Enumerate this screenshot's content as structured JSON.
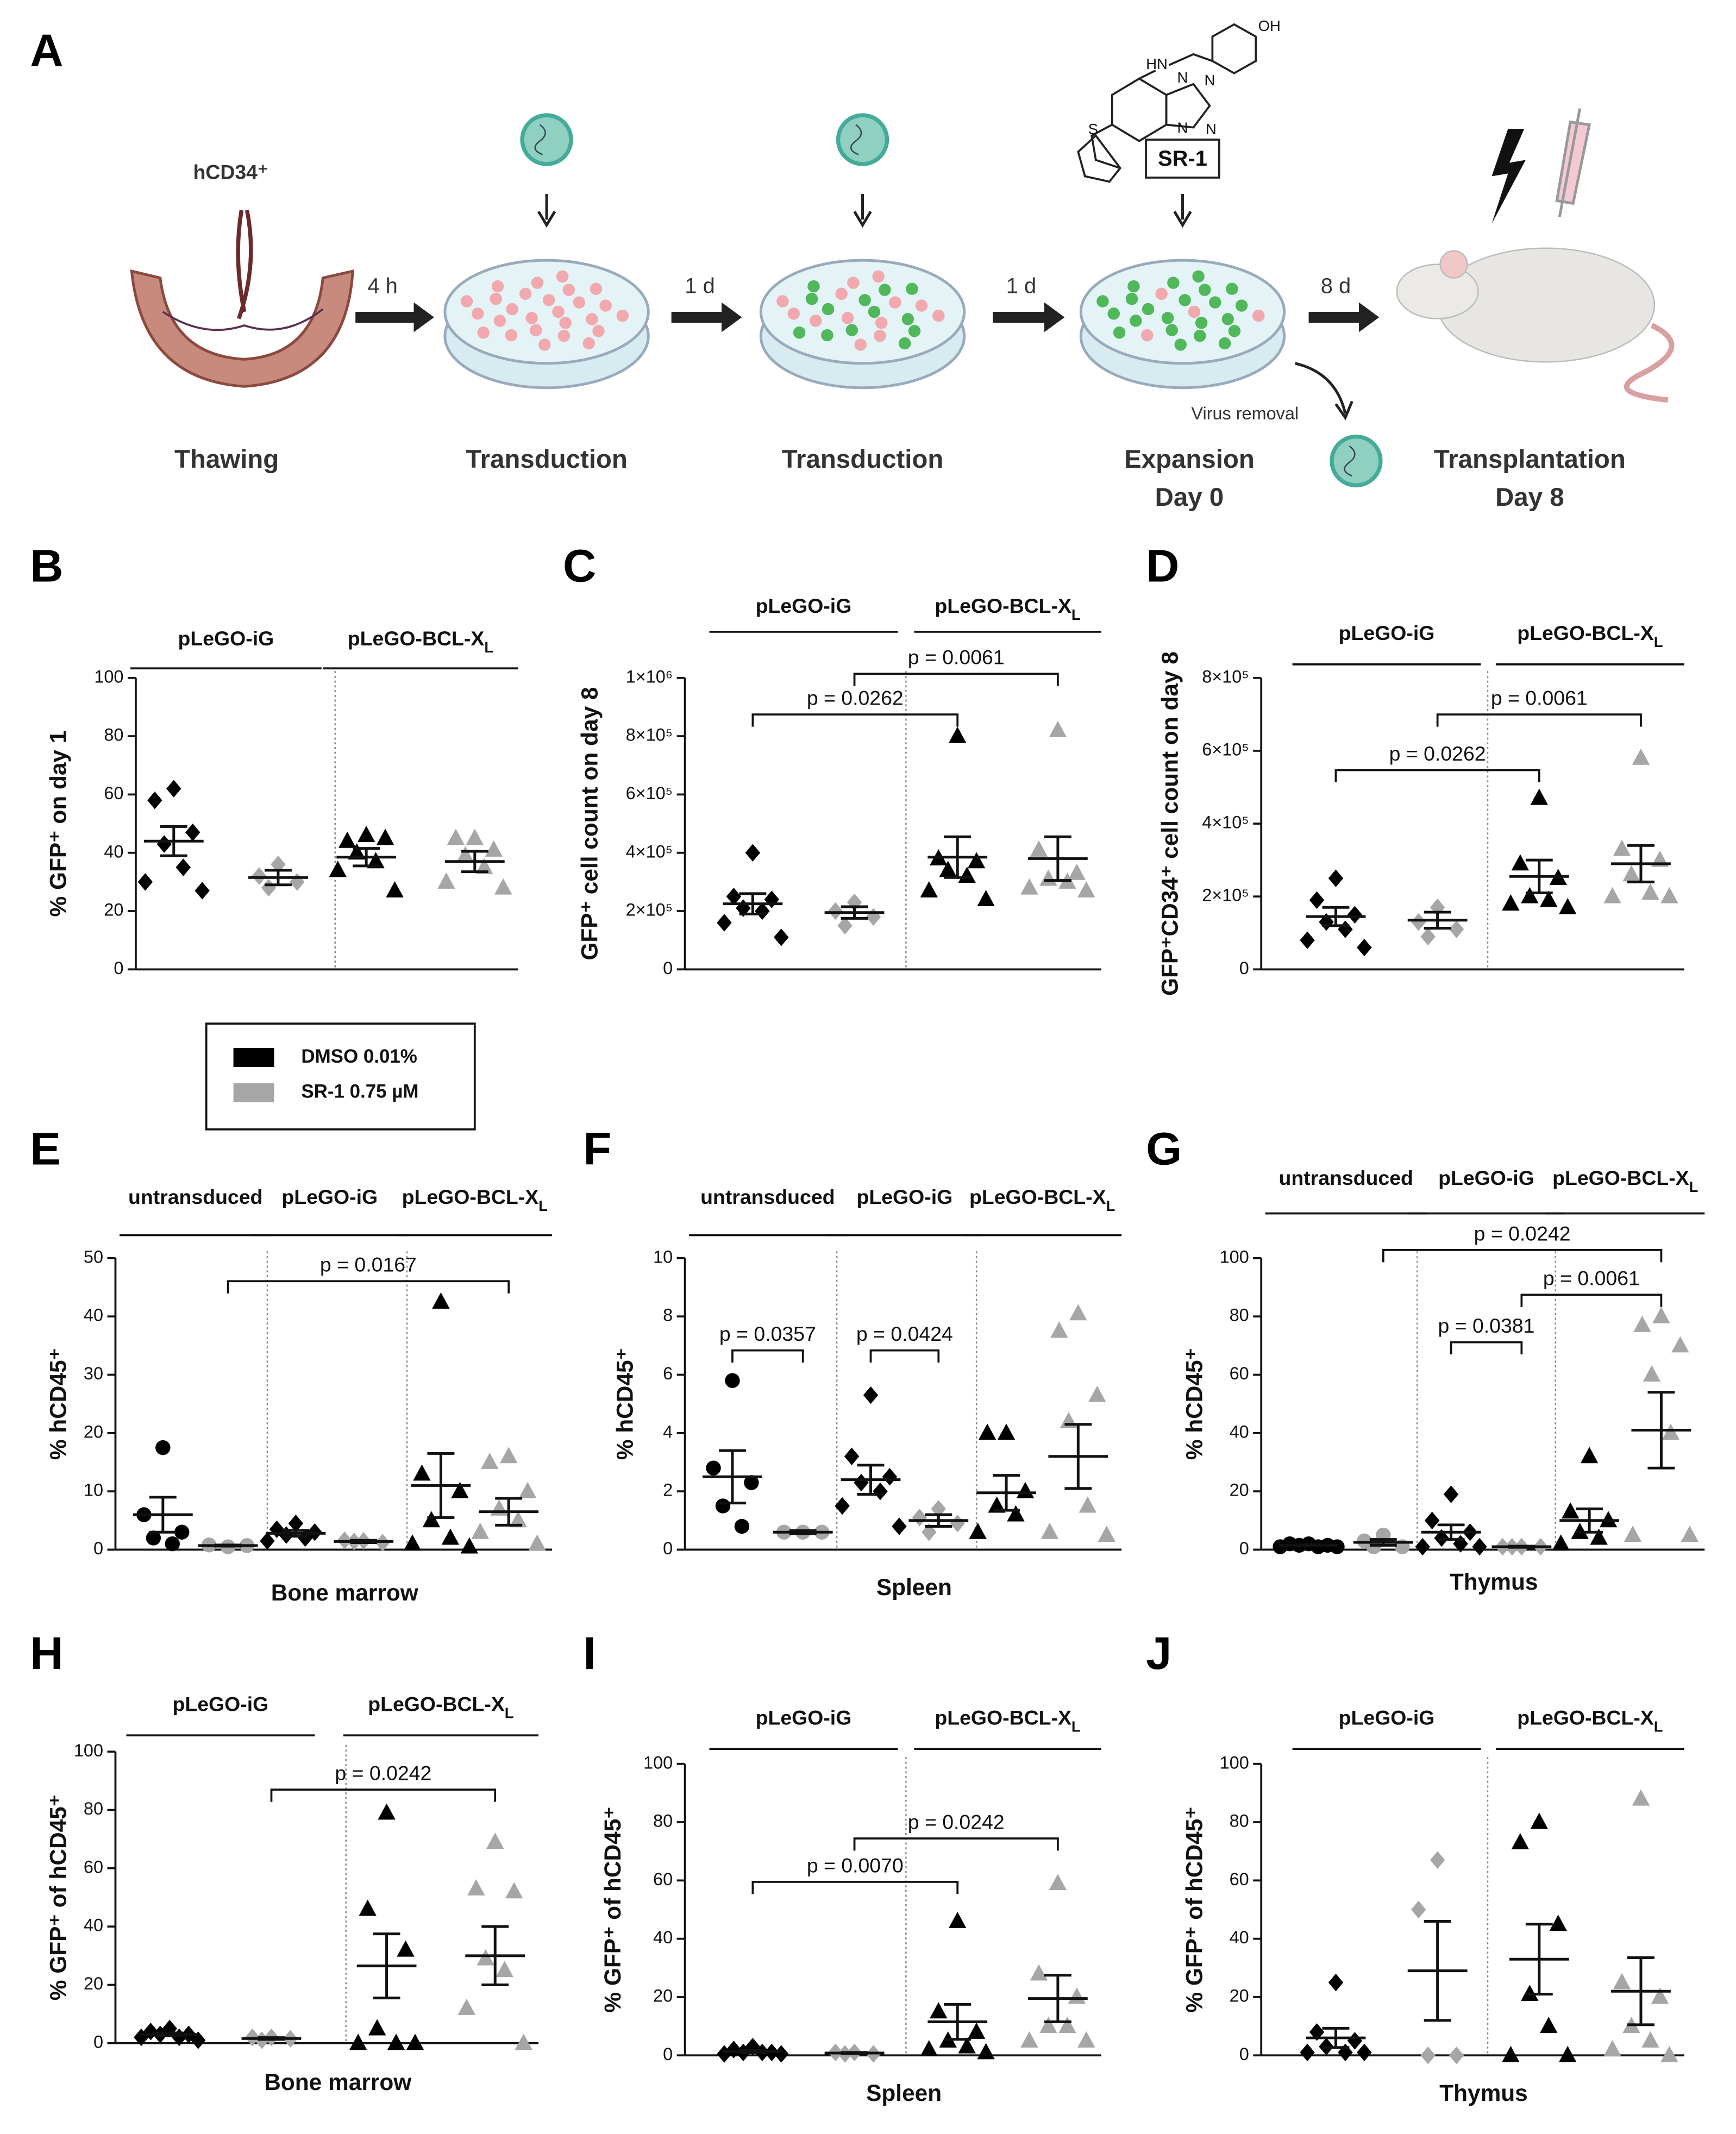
{
  "schematic": {
    "panel": "A",
    "source": "hCD34⁺",
    "intervals": [
      "4 h",
      "1 d",
      "1 d",
      "8 d"
    ],
    "stages": [
      [
        "Thawing"
      ],
      [
        "Transduction"
      ],
      [
        "Transduction"
      ],
      [
        "Expansion",
        "Day 0"
      ],
      [
        "Transplantation",
        "Day 8"
      ]
    ],
    "compound": "SR-1",
    "compound_atoms": [
      "OH",
      "HN",
      "N",
      "N",
      "N",
      "N",
      "S"
    ],
    "side_step": "Virus removal"
  },
  "legend": {
    "series": [
      {
        "name": "DMSO 0.01%",
        "color": "#000000"
      },
      {
        "name": "SR-1 0.75 µM",
        "color": "#a6a6a6"
      }
    ]
  },
  "chart_data": [
    {
      "type": "dotplot",
      "panel": "B",
      "ylabel": "% GFP⁺ on day 1",
      "ylim": [
        0,
        100
      ],
      "yticks": [
        0,
        20,
        40,
        60,
        80,
        100
      ],
      "headers": [
        "pLeGO-iG",
        {
          "text": "pLeGO-BCL-X",
          "sub": "L"
        }
      ],
      "groups": [
        {
          "series": 0,
          "marker": "diamond",
          "values": [
            62,
            58,
            47,
            43,
            35,
            30,
            27
          ],
          "mean": 44,
          "sem": 5
        },
        {
          "series": 1,
          "marker": "diamond",
          "values": [
            36,
            32,
            30,
            28
          ],
          "mean": 31.5,
          "sem": 2.5
        },
        {
          "series": 0,
          "marker": "triangle",
          "values": [
            46,
            44,
            45,
            40,
            37,
            34,
            27
          ],
          "mean": 38.5,
          "sem": 3
        },
        {
          "series": 1,
          "marker": "triangle",
          "values": [
            45,
            45,
            41,
            39,
            35,
            30,
            28
          ],
          "mean": 37,
          "sem": 3.5
        }
      ],
      "brackets": []
    },
    {
      "type": "dotplot",
      "panel": "C",
      "ylabel": "GFP⁺ cell count on day 8",
      "ylim": [
        0,
        1000000
      ],
      "yticks": [
        0,
        {
          "value": 200000,
          "label": "2×10⁵"
        },
        {
          "value": 400000,
          "label": "4×10⁵"
        },
        {
          "value": 600000,
          "label": "6×10⁵"
        },
        {
          "value": 800000,
          "label": "8×10⁵"
        },
        {
          "value": 1000000,
          "label": "1×10⁶"
        }
      ],
      "headers": [
        "pLeGO-iG",
        {
          "text": "pLeGO-BCL-X",
          "sub": "L"
        }
      ],
      "groups": [
        {
          "series": 0,
          "marker": "diamond",
          "values": [
            400000,
            250000,
            240000,
            210000,
            200000,
            160000,
            110000
          ],
          "mean": 225000,
          "sem": 35000
        },
        {
          "series": 1,
          "marker": "diamond",
          "values": [
            230000,
            200000,
            180000,
            150000
          ],
          "mean": 195000,
          "sem": 20000
        },
        {
          "series": 0,
          "marker": "triangle",
          "values": [
            800000,
            380000,
            370000,
            340000,
            320000,
            270000,
            240000
          ],
          "mean": 385000,
          "sem": 70000
        },
        {
          "series": 1,
          "marker": "triangle",
          "values": [
            820000,
            410000,
            330000,
            310000,
            300000,
            280000,
            270000
          ],
          "mean": 380000,
          "sem": 75000
        }
      ],
      "brackets": [
        "p = 0.0262",
        "p = 0.0061"
      ]
    },
    {
      "type": "dotplot",
      "panel": "D",
      "ylabel": "GFP⁺CD34⁺ cell count on day 8",
      "ylim": [
        0,
        800000
      ],
      "yticks": [
        0,
        {
          "value": 200000,
          "label": "2×10⁵"
        },
        {
          "value": 400000,
          "label": "4×10⁵"
        },
        {
          "value": 600000,
          "label": "6×10⁵"
        },
        {
          "value": 800000,
          "label": "8×10⁵"
        }
      ],
      "headers": [
        "pLeGO-iG",
        {
          "text": "pLeGO-BCL-X",
          "sub": "L"
        }
      ],
      "groups": [
        {
          "series": 0,
          "marker": "diamond",
          "values": [
            250000,
            190000,
            150000,
            130000,
            110000,
            80000,
            60000
          ],
          "mean": 145000,
          "sem": 25000
        },
        {
          "series": 1,
          "marker": "diamond",
          "values": [
            170000,
            130000,
            110000,
            90000
          ],
          "mean": 135000,
          "sem": 22000
        },
        {
          "series": 0,
          "marker": "triangle",
          "values": [
            470000,
            290000,
            250000,
            200000,
            190000,
            180000,
            170000
          ],
          "mean": 255000,
          "sem": 45000
        },
        {
          "series": 1,
          "marker": "triangle",
          "values": [
            580000,
            330000,
            300000,
            260000,
            210000,
            200000,
            200000
          ],
          "mean": 290000,
          "sem": 50000
        }
      ],
      "brackets": [
        "p = 0.0262",
        "p = 0.0061"
      ]
    },
    {
      "type": "dotplot",
      "panel": "E",
      "ylabel": "% hCD45⁺",
      "xlabel": "Bone marrow",
      "ylim": [
        0,
        50
      ],
      "yticks": [
        0,
        10,
        20,
        30,
        40,
        50
      ],
      "headers": [
        "untransduced",
        "pLeGO-iG",
        {
          "text": "pLeGO-BCL-X",
          "sub": "L"
        }
      ],
      "groups": [
        {
          "series": 0,
          "marker": "circle",
          "values": [
            17.5,
            6,
            3,
            2,
            1
          ],
          "mean": 6,
          "sem": 3
        },
        {
          "series": 1,
          "marker": "circle",
          "values": [
            0.5,
            0.8,
            0.7
          ],
          "mean": 0.7,
          "sem": 0.1
        },
        {
          "series": 0,
          "marker": "diamond",
          "values": [
            4.5,
            3.5,
            3,
            2.5,
            2,
            1.5
          ],
          "mean": 2.8,
          "sem": 0.5
        },
        {
          "series": 1,
          "marker": "diamond",
          "values": [
            1.5,
            1.6,
            1.2,
            1.4
          ],
          "mean": 1.4,
          "sem": 0.2
        },
        {
          "series": 0,
          "marker": "triangle",
          "values": [
            42.5,
            13,
            10,
            5,
            2,
            1,
            0.5
          ],
          "mean": 11,
          "sem": 5.5
        },
        {
          "series": 1,
          "marker": "triangle",
          "values": [
            16,
            15,
            10,
            7,
            5,
            3,
            1
          ],
          "mean": 6.5,
          "sem": 2.3
        }
      ],
      "brackets": [
        "p = 0.0167"
      ]
    },
    {
      "type": "dotplot",
      "panel": "F",
      "ylabel": "% hCD45⁺",
      "xlabel": "Spleen",
      "ylim": [
        0,
        10
      ],
      "yticks": [
        0,
        2,
        4,
        6,
        8,
        10
      ],
      "headers": [
        "untransduced",
        "pLeGO-iG",
        {
          "text": "pLeGO-BCL-X",
          "sub": "L"
        }
      ],
      "groups": [
        {
          "series": 0,
          "marker": "circle",
          "values": [
            5.8,
            2.8,
            2.3,
            1.5,
            0.8
          ],
          "mean": 2.5,
          "sem": 0.9
        },
        {
          "series": 1,
          "marker": "circle",
          "values": [
            0.6,
            0.6,
            0.6
          ],
          "mean": 0.6,
          "sem": 0.05
        },
        {
          "series": 0,
          "marker": "diamond",
          "values": [
            5.3,
            3.2,
            2.5,
            2.3,
            2,
            1.5,
            0.8
          ],
          "mean": 2.4,
          "sem": 0.5
        },
        {
          "series": 1,
          "marker": "diamond",
          "values": [
            1.4,
            1.1,
            0.9,
            0.6
          ],
          "mean": 1,
          "sem": 0.2
        },
        {
          "series": 0,
          "marker": "triangle",
          "values": [
            4,
            4,
            2,
            1.5,
            1.2,
            0.6
          ],
          "mean": 1.95,
          "sem": 0.6
        },
        {
          "series": 1,
          "marker": "triangle",
          "values": [
            8.1,
            7.5,
            5.3,
            4.4,
            1.5,
            0.6,
            0.5
          ],
          "mean": 3.2,
          "sem": 1.1
        }
      ],
      "brackets": [
        "p = 0.0357",
        "p = 0.0424"
      ]
    },
    {
      "type": "dotplot",
      "panel": "G",
      "ylabel": "% hCD45⁺",
      "xlabel": "Thymus",
      "ylim": [
        0,
        100
      ],
      "yticks": [
        0,
        20,
        40,
        60,
        80,
        100
      ],
      "headers": [
        "untransduced",
        "pLeGO-iG",
        {
          "text": "pLeGO-BCL-X",
          "sub": "L"
        }
      ],
      "groups": [
        {
          "series": 0,
          "marker": "circle",
          "values": [
            2,
            2,
            1.5,
            1.5,
            1,
            1,
            1
          ],
          "mean": 1.5,
          "sem": 0.2
        },
        {
          "series": 1,
          "marker": "circle",
          "values": [
            5,
            3,
            1,
            1
          ],
          "mean": 2.5,
          "sem": 1
        },
        {
          "series": 0,
          "marker": "diamond",
          "values": [
            19,
            10,
            6,
            4,
            2,
            1,
            1
          ],
          "mean": 6,
          "sem": 2.5
        },
        {
          "series": 1,
          "marker": "diamond",
          "values": [
            1,
            1,
            1,
            1
          ],
          "mean": 1,
          "sem": 0.2
        },
        {
          "series": 0,
          "marker": "triangle",
          "values": [
            32,
            13,
            10,
            6,
            4,
            2
          ],
          "mean": 10,
          "sem": 4
        },
        {
          "series": 1,
          "marker": "triangle",
          "values": [
            80,
            77,
            70,
            60,
            40,
            5,
            5
          ],
          "mean": 41,
          "sem": 13
        }
      ],
      "brackets": [
        "p = 0.0242",
        "p = 0.0061",
        "p = 0.0381"
      ]
    },
    {
      "type": "dotplot",
      "panel": "H",
      "ylabel": "% GFP⁺ of hCD45⁺",
      "xlabel": "Bone marrow",
      "ylim": [
        0,
        100
      ],
      "yticks": [
        0,
        20,
        40,
        60,
        80,
        100
      ],
      "headers": [
        "pLeGO-iG",
        {
          "text": "pLeGO-BCL-X",
          "sub": "L"
        }
      ],
      "groups": [
        {
          "series": 0,
          "marker": "diamond",
          "values": [
            5,
            4,
            3,
            3,
            2,
            2,
            1
          ],
          "mean": 3,
          "sem": 0.5
        },
        {
          "series": 1,
          "marker": "diamond",
          "values": [
            2,
            2,
            1.5,
            1
          ],
          "mean": 1.6,
          "sem": 0.3
        },
        {
          "series": 0,
          "marker": "triangle",
          "values": [
            79,
            46,
            32,
            5,
            0,
            0,
            0
          ],
          "mean": 26.5,
          "sem": 11
        },
        {
          "series": 1,
          "marker": "triangle",
          "values": [
            69,
            53,
            52,
            29,
            25,
            12,
            0
          ],
          "mean": 30,
          "sem": 10
        }
      ],
      "brackets": [
        "p = 0.0242"
      ]
    },
    {
      "type": "dotplot",
      "panel": "I",
      "ylabel": "% GFP⁺ of hCD45⁺",
      "xlabel": "Spleen",
      "ylim": [
        0,
        100
      ],
      "yticks": [
        0,
        20,
        40,
        60,
        80,
        100
      ],
      "headers": [
        "pLeGO-iG",
        {
          "text": "pLeGO-BCL-X",
          "sub": "L"
        }
      ],
      "groups": [
        {
          "series": 0,
          "marker": "diamond",
          "values": [
            3,
            2,
            1,
            1,
            1,
            0.5,
            0.5
          ],
          "mean": 1.3,
          "sem": 0.4
        },
        {
          "series": 1,
          "marker": "diamond",
          "values": [
            1,
            1,
            0.5,
            0.5
          ],
          "mean": 0.8,
          "sem": 0.2
        },
        {
          "series": 0,
          "marker": "triangle",
          "values": [
            46,
            15,
            8,
            5,
            3,
            2,
            1
          ],
          "mean": 11.5,
          "sem": 6
        },
        {
          "series": 1,
          "marker": "triangle",
          "values": [
            59,
            28,
            20,
            10,
            10,
            5,
            5
          ],
          "mean": 19.5,
          "sem": 8
        }
      ],
      "brackets": [
        "p = 0.0070",
        "p = 0.0242"
      ]
    },
    {
      "type": "dotplot",
      "panel": "J",
      "ylabel": "% GFP⁺ of hCD45⁺",
      "xlabel": "Thymus",
      "ylim": [
        0,
        100
      ],
      "yticks": [
        0,
        20,
        40,
        60,
        80,
        100
      ],
      "headers": [
        "pLeGO-iG",
        {
          "text": "pLeGO-BCL-X",
          "sub": "L"
        }
      ],
      "groups": [
        {
          "series": 0,
          "marker": "diamond",
          "values": [
            25,
            8,
            5,
            3,
            1,
            1,
            1
          ],
          "mean": 6,
          "sem": 3.3
        },
        {
          "series": 1,
          "marker": "diamond",
          "values": [
            67,
            50,
            0,
            0
          ],
          "mean": 29,
          "sem": 17
        },
        {
          "series": 0,
          "marker": "triangle",
          "values": [
            80,
            73,
            45,
            21,
            10,
            0,
            0
          ],
          "mean": 33,
          "sem": 12
        },
        {
          "series": 1,
          "marker": "triangle",
          "values": [
            88,
            25,
            20,
            10,
            5,
            2,
            0
          ],
          "mean": 22,
          "sem": 11.5
        }
      ],
      "brackets": []
    }
  ]
}
